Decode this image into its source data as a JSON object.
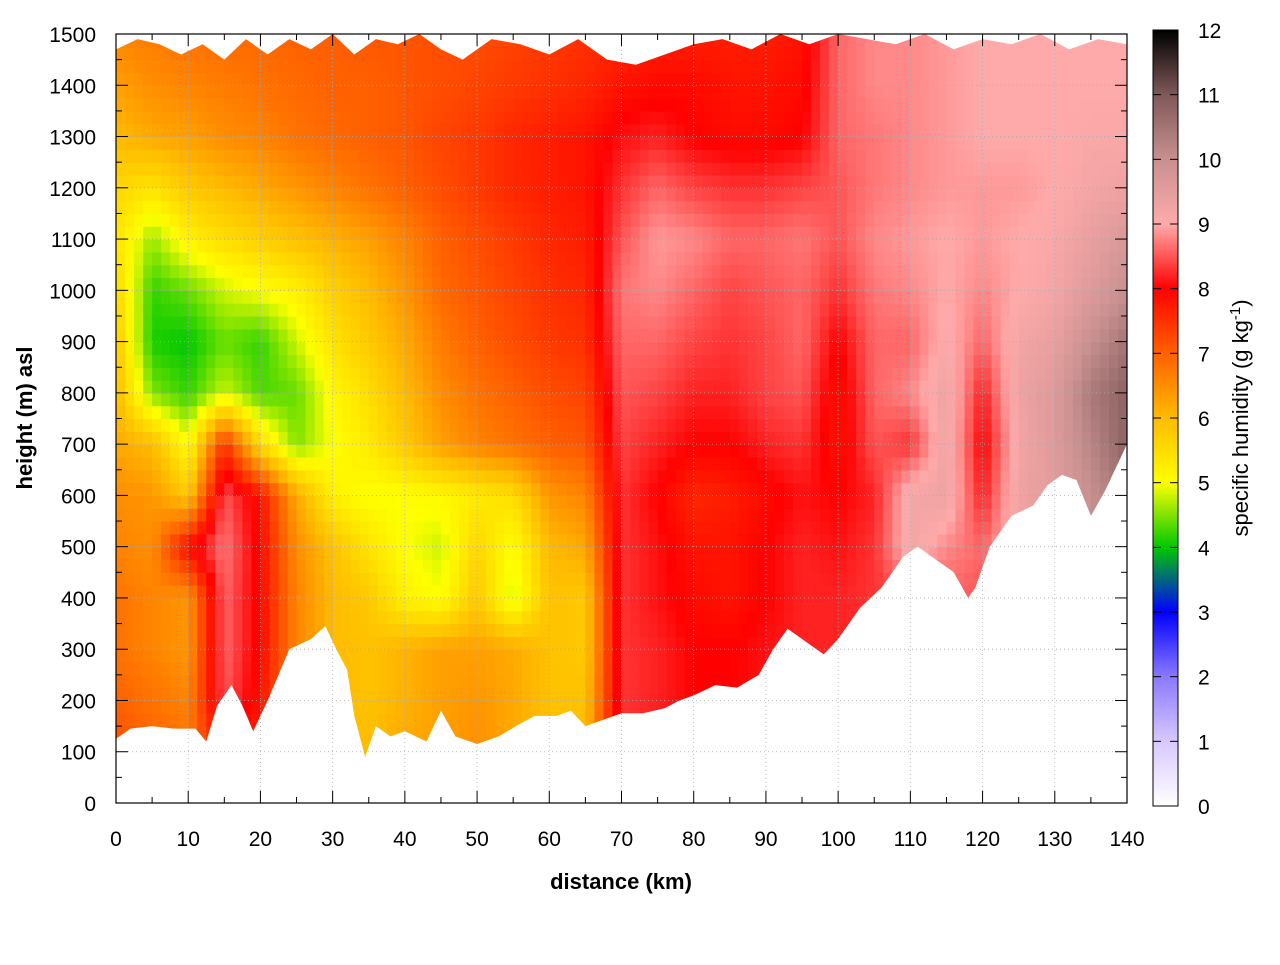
{
  "chart_data": {
    "type": "heatmap",
    "title": "",
    "xlabel": "distance (km)",
    "ylabel": "height (m) asl",
    "xlim": [
      0,
      140
    ],
    "ylim": [
      0,
      1500
    ],
    "x_ticks": [
      "0",
      "10",
      "20",
      "30",
      "40",
      "50",
      "60",
      "70",
      "80",
      "90",
      "100",
      "110",
      "120",
      "130",
      "140"
    ],
    "y_ticks": [
      "0",
      "100",
      "200",
      "300",
      "400",
      "500",
      "600",
      "700",
      "800",
      "900",
      "1000",
      "1100",
      "1200",
      "1300",
      "1400",
      "1500"
    ],
    "grid": true,
    "colorbar": {
      "label_text": "specific humidity (g kg",
      "label_sup": "-1",
      "label_close": ")",
      "range": [
        0,
        12
      ],
      "ticks": [
        "0",
        "1",
        "2",
        "3",
        "4",
        "5",
        "6",
        "7",
        "8",
        "9",
        "10",
        "11",
        "12"
      ],
      "stops": [
        {
          "v": 0,
          "c": "#ffffff"
        },
        {
          "v": 1,
          "c": "#d8c8ff"
        },
        {
          "v": 2,
          "c": "#8a78ff"
        },
        {
          "v": 3,
          "c": "#0000ff"
        },
        {
          "v": 4,
          "c": "#00c800"
        },
        {
          "v": 5,
          "c": "#ffff00"
        },
        {
          "v": 6,
          "c": "#ffbb00"
        },
        {
          "v": 7,
          "c": "#ff6000"
        },
        {
          "v": 8,
          "c": "#ff0000"
        },
        {
          "v": 9,
          "c": "#ffaaaa"
        },
        {
          "v": 10,
          "c": "#c89090"
        },
        {
          "v": 11,
          "c": "#805858"
        },
        {
          "v": 12,
          "c": "#000000"
        }
      ]
    },
    "terrain_profile": {
      "x": [
        0,
        2,
        5,
        8,
        11,
        12.5,
        14,
        16,
        17.5,
        19,
        21,
        24,
        27,
        29,
        30.5,
        32,
        33,
        34.5,
        36,
        38,
        40,
        43,
        45,
        47,
        50,
        53,
        56,
        58,
        61,
        63,
        65,
        67,
        70,
        73,
        76,
        78,
        80,
        83,
        86,
        89,
        91,
        93,
        95,
        98,
        100,
        103,
        106,
        109,
        111,
        113,
        116,
        118,
        119,
        121,
        124,
        127,
        129,
        131,
        133,
        135,
        137,
        140
      ],
      "height_m": [
        125,
        145,
        150,
        145,
        145,
        120,
        190,
        230,
        190,
        140,
        200,
        300,
        320,
        345,
        300,
        260,
        170,
        90,
        150,
        130,
        140,
        120,
        180,
        130,
        115,
        130,
        155,
        170,
        170,
        180,
        150,
        160,
        175,
        175,
        185,
        200,
        210,
        230,
        225,
        250,
        300,
        340,
        320,
        290,
        320,
        380,
        420,
        480,
        500,
        480,
        450,
        400,
        420,
        500,
        560,
        580,
        620,
        640,
        630,
        560,
        610,
        700
      ]
    },
    "top_profile": {
      "x": [
        0,
        3,
        6,
        9,
        12,
        15,
        18,
        21,
        24,
        27,
        30,
        33,
        36,
        39,
        42,
        45,
        48,
        52,
        56,
        60,
        64,
        68,
        72,
        76,
        80,
        84,
        88,
        92,
        96,
        100,
        104,
        108,
        112,
        116,
        120,
        124,
        128,
        132,
        136,
        140
      ],
      "height_m": [
        1470,
        1490,
        1480,
        1460,
        1480,
        1450,
        1490,
        1460,
        1490,
        1470,
        1500,
        1460,
        1490,
        1480,
        1500,
        1470,
        1450,
        1490,
        1480,
        1460,
        1490,
        1450,
        1440,
        1460,
        1480,
        1490,
        1470,
        1500,
        1480,
        1500,
        1490,
        1480,
        1500,
        1470,
        1490,
        1480,
        1500,
        1470,
        1490,
        1480
      ]
    },
    "field_grid": {
      "x_km": [
        0,
        5,
        10,
        15,
        20,
        25,
        30,
        35,
        40,
        45,
        50,
        55,
        60,
        65,
        70,
        75,
        80,
        85,
        90,
        95,
        100,
        105,
        110,
        115,
        120,
        125,
        130,
        135,
        140
      ],
      "z_m": [
        100,
        200,
        300,
        400,
        500,
        600,
        700,
        800,
        900,
        1000,
        1100,
        1200,
        1300,
        1400,
        1500
      ],
      "q_g_per_kg": [
        [
          7.2,
          7.0,
          6.8,
          7.6,
          7.6,
          6.5,
          6.1,
          6.0,
          6.2,
          6.3,
          6.5,
          6.2,
          6.0,
          6.0,
          8.3,
          8.2,
          8.0,
          8.0,
          8.1,
          8.2,
          8.2,
          8.3,
          8.4,
          8.5,
          8.6,
          9.0,
          9.5,
          9.8,
          10.0
        ],
        [
          7.0,
          6.8,
          6.6,
          8.5,
          7.8,
          6.6,
          6.0,
          5.9,
          6.1,
          6.3,
          6.4,
          6.2,
          5.9,
          5.9,
          8.3,
          8.2,
          8.0,
          8.0,
          8.1,
          8.2,
          8.2,
          8.3,
          8.4,
          8.5,
          8.6,
          9.0,
          9.5,
          9.8,
          10.0
        ],
        [
          6.8,
          6.6,
          6.4,
          8.6,
          7.9,
          6.6,
          6.0,
          5.9,
          6.1,
          6.3,
          6.3,
          6.2,
          5.9,
          5.8,
          8.3,
          8.2,
          8.0,
          8.0,
          8.1,
          8.2,
          8.2,
          8.3,
          8.4,
          8.5,
          8.6,
          9.0,
          9.5,
          9.8,
          10.0
        ],
        [
          6.8,
          6.6,
          6.4,
          8.6,
          7.9,
          6.6,
          6.0,
          5.8,
          5.2,
          5.0,
          5.8,
          4.8,
          5.9,
          5.8,
          8.3,
          8.1,
          7.9,
          7.8,
          8.0,
          8.2,
          8.2,
          8.3,
          8.4,
          8.6,
          8.5,
          9.0,
          9.5,
          9.8,
          10.2
        ],
        [
          6.6,
          6.5,
          7.9,
          8.7,
          7.9,
          6.5,
          5.9,
          5.4,
          5.0,
          4.8,
          5.6,
          5.0,
          6.0,
          6.2,
          8.3,
          8.1,
          7.8,
          7.8,
          8.0,
          8.2,
          8.1,
          8.3,
          9.2,
          8.8,
          8.6,
          9.2,
          9.6,
          10.0,
          10.5
        ],
        [
          6.5,
          6.4,
          5.8,
          8.5,
          7.8,
          6.2,
          5.2,
          5.0,
          5.0,
          5.1,
          5.3,
          5.5,
          6.4,
          6.6,
          8.3,
          8.0,
          7.6,
          7.7,
          7.9,
          8.1,
          8.0,
          8.2,
          9.2,
          9.3,
          8.2,
          9.3,
          9.5,
          10.0,
          10.5
        ],
        [
          6.2,
          6.0,
          5.0,
          7.5,
          5.5,
          4.5,
          5.0,
          5.3,
          5.8,
          6.3,
          6.6,
          6.8,
          7.0,
          7.1,
          8.4,
          8.2,
          8.0,
          8.0,
          8.2,
          8.3,
          7.8,
          8.5,
          8.3,
          9.3,
          8.0,
          9.2,
          9.6,
          10.2,
          10.8
        ],
        [
          6.0,
          4.5,
          4.2,
          4.8,
          4.3,
          4.4,
          5.1,
          5.5,
          6.0,
          6.5,
          6.8,
          7.0,
          7.2,
          7.3,
          8.5,
          8.4,
          8.2,
          8.2,
          8.4,
          8.5,
          7.8,
          8.6,
          8.8,
          9.3,
          8.2,
          9.3,
          9.6,
          10.4,
          10.8
        ],
        [
          5.8,
          4.1,
          4.0,
          4.4,
          4.2,
          4.8,
          5.4,
          5.8,
          6.2,
          6.7,
          7.0,
          7.2,
          7.4,
          7.5,
          8.6,
          8.6,
          8.4,
          8.3,
          8.4,
          8.6,
          8.0,
          8.6,
          8.6,
          9.1,
          8.6,
          9.2,
          9.4,
          10.0,
          10.5
        ],
        [
          5.6,
          4.2,
          4.4,
          4.8,
          5.0,
          5.2,
          5.7,
          6.0,
          6.4,
          6.9,
          7.1,
          7.3,
          7.5,
          7.6,
          8.7,
          8.8,
          8.6,
          8.4,
          8.5,
          8.6,
          8.3,
          8.7,
          8.8,
          9.0,
          8.8,
          9.0,
          9.2,
          9.6,
          10.0
        ],
        [
          5.4,
          4.6,
          5.2,
          5.5,
          5.7,
          5.9,
          6.1,
          6.3,
          6.6,
          7.0,
          7.2,
          7.4,
          7.6,
          7.7,
          8.5,
          8.9,
          8.8,
          8.6,
          8.6,
          8.7,
          8.5,
          8.8,
          8.9,
          9.0,
          8.9,
          9.0,
          9.1,
          9.4,
          9.7
        ],
        [
          5.6,
          5.4,
          5.8,
          6.0,
          6.2,
          6.4,
          6.6,
          6.8,
          7.0,
          7.2,
          7.4,
          7.6,
          7.7,
          7.8,
          8.3,
          8.6,
          8.4,
          8.3,
          8.3,
          8.4,
          8.5,
          8.7,
          8.8,
          8.9,
          8.9,
          8.9,
          9.0,
          9.2,
          9.3
        ],
        [
          6.0,
          6.2,
          6.3,
          6.5,
          6.6,
          6.8,
          6.9,
          7.0,
          7.1,
          7.3,
          7.4,
          7.6,
          7.7,
          7.8,
          8.1,
          8.2,
          8.0,
          7.9,
          7.9,
          8.0,
          8.6,
          8.7,
          8.8,
          8.9,
          9.0,
          9.0,
          9.0,
          9.1,
          9.1
        ],
        [
          6.3,
          6.5,
          6.6,
          6.7,
          6.8,
          6.9,
          7.0,
          7.0,
          7.1,
          7.2,
          7.3,
          7.4,
          7.5,
          7.6,
          7.8,
          7.9,
          7.9,
          7.8,
          7.8,
          7.9,
          8.6,
          8.8,
          8.8,
          8.9,
          9.0,
          9.0,
          9.0,
          9.0,
          9.0
        ],
        [
          6.6,
          6.7,
          6.8,
          6.9,
          6.9,
          7.0,
          7.0,
          7.1,
          7.1,
          7.2,
          7.2,
          7.3,
          7.4,
          7.5,
          7.6,
          7.7,
          7.7,
          7.7,
          7.7,
          7.8,
          8.6,
          8.8,
          8.8,
          8.9,
          9.0,
          9.0,
          9.0,
          9.0,
          9.0
        ]
      ]
    }
  }
}
